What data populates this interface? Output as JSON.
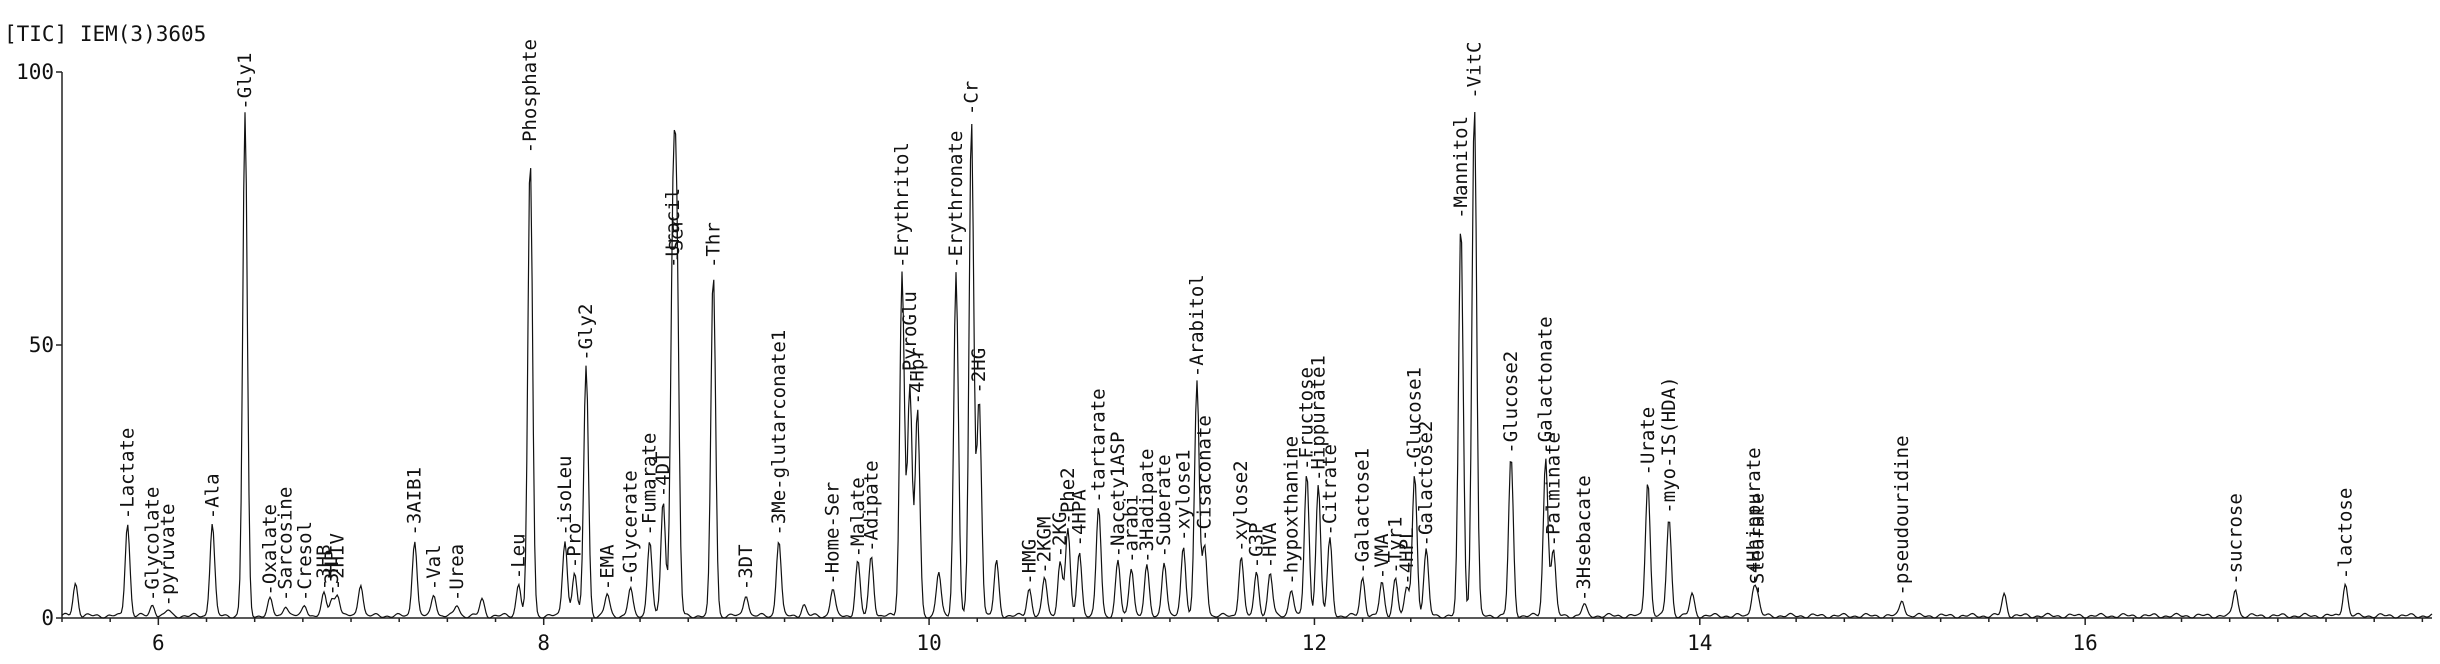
{
  "chart_data": {
    "type": "line",
    "title": "[TIC] IEM(3)3605",
    "xlabel": "",
    "ylabel": "",
    "xlim": [
      5.5,
      17.8
    ],
    "ylim": [
      0,
      100
    ],
    "x_ticks": [
      6,
      8,
      10,
      12,
      14,
      16
    ],
    "y_ticks": [
      0,
      50,
      100
    ],
    "grid": false,
    "series": [
      {
        "values": [],
        "peaks": [
          {
            "x": 5.57,
            "y": 6,
            "label": ""
          },
          {
            "x": 5.84,
            "y": 17,
            "label": "Lactate"
          },
          {
            "x": 5.97,
            "y": 2,
            "label": "Glycolate"
          },
          {
            "x": 6.05,
            "y": 1,
            "label": "pyruvate"
          },
          {
            "x": 6.28,
            "y": 17,
            "label": "Ala"
          },
          {
            "x": 6.45,
            "y": 92,
            "label": "Gly1"
          },
          {
            "x": 6.58,
            "y": 3,
            "label": "Oxalate"
          },
          {
            "x": 6.66,
            "y": 2,
            "label": "Sarcosine"
          },
          {
            "x": 6.76,
            "y": 2,
            "label": "Cresol"
          },
          {
            "x": 6.86,
            "y": 4,
            "label": "3HB"
          },
          {
            "x": 6.9,
            "y": 3,
            "label": "3HP"
          },
          {
            "x": 6.93,
            "y": 4,
            "label": "2HIV"
          },
          {
            "x": 7.05,
            "y": 6,
            "label": ""
          },
          {
            "x": 7.33,
            "y": 14,
            "label": "3AIB1"
          },
          {
            "x": 7.43,
            "y": 4,
            "label": "Val"
          },
          {
            "x": 7.55,
            "y": 2,
            "label": "Urea"
          },
          {
            "x": 7.68,
            "y": 3,
            "label": ""
          },
          {
            "x": 7.87,
            "y": 6,
            "label": "Leu"
          },
          {
            "x": 7.93,
            "y": 84,
            "label": "Phosphate"
          },
          {
            "x": 8.11,
            "y": 14,
            "label": "isoLeu"
          },
          {
            "x": 8.16,
            "y": 8,
            "label": "Pro"
          },
          {
            "x": 8.22,
            "y": 46,
            "label": "Gly2"
          },
          {
            "x": 8.33,
            "y": 4,
            "label": "EMA"
          },
          {
            "x": 8.45,
            "y": 5,
            "label": "Glycerate"
          },
          {
            "x": 8.55,
            "y": 14,
            "label": "Fumarate"
          },
          {
            "x": 8.62,
            "y": 21,
            "label": "4DT"
          },
          {
            "x": 8.67,
            "y": 63,
            "label": "Uracil"
          },
          {
            "x": 8.69,
            "y": 64,
            "label": "Ser"
          },
          {
            "x": 8.88,
            "y": 63,
            "label": "Thr"
          },
          {
            "x": 9.05,
            "y": 4,
            "label": "3DT"
          },
          {
            "x": 9.22,
            "y": 14,
            "label": "3Me-glutarconate1"
          },
          {
            "x": 9.35,
            "y": 2,
            "label": ""
          },
          {
            "x": 9.5,
            "y": 5,
            "label": "Home-Ser"
          },
          {
            "x": 9.63,
            "y": 10,
            "label": "Malate"
          },
          {
            "x": 9.7,
            "y": 11,
            "label": "Adipate"
          },
          {
            "x": 9.86,
            "y": 63,
            "label": "Erythritol"
          },
          {
            "x": 9.9,
            "y": 42,
            "label": "PyroGlu"
          },
          {
            "x": 9.94,
            "y": 38,
            "label": "4Hpr"
          },
          {
            "x": 10.05,
            "y": 8,
            "label": ""
          },
          {
            "x": 10.14,
            "y": 63,
            "label": "Erythronate"
          },
          {
            "x": 10.22,
            "y": 91,
            "label": "Cr"
          },
          {
            "x": 10.26,
            "y": 40,
            "label": "2HG"
          },
          {
            "x": 10.35,
            "y": 10,
            "label": ""
          },
          {
            "x": 10.52,
            "y": 5,
            "label": "HMG"
          },
          {
            "x": 10.6,
            "y": 7,
            "label": "2KGM"
          },
          {
            "x": 10.68,
            "y": 10,
            "label": "2KG"
          },
          {
            "x": 10.72,
            "y": 16,
            "label": "Phe2"
          },
          {
            "x": 10.78,
            "y": 12,
            "label": "4HPA"
          },
          {
            "x": 10.88,
            "y": 20,
            "label": "tartarate"
          },
          {
            "x": 10.98,
            "y": 10,
            "label": "Nacety1ASP"
          },
          {
            "x": 11.05,
            "y": 9,
            "label": "arabi"
          },
          {
            "x": 11.13,
            "y": 9,
            "label": "3Hadipate"
          },
          {
            "x": 11.22,
            "y": 10,
            "label": "Suberate"
          },
          {
            "x": 11.32,
            "y": 13,
            "label": "xylose1"
          },
          {
            "x": 11.39,
            "y": 43,
            "label": "Arabitol"
          },
          {
            "x": 11.43,
            "y": 13,
            "label": "Cisaconate"
          },
          {
            "x": 11.62,
            "y": 11,
            "label": "xylose2"
          },
          {
            "x": 11.7,
            "y": 8,
            "label": "G3P"
          },
          {
            "x": 11.77,
            "y": 8,
            "label": "HVA"
          },
          {
            "x": 11.88,
            "y": 5,
            "label": "hypoxthanine"
          },
          {
            "x": 11.96,
            "y": 26,
            "label": "Fructose"
          },
          {
            "x": 12.02,
            "y": 24,
            "label": "Hippurate1"
          },
          {
            "x": 12.08,
            "y": 14,
            "label": "Citrate"
          },
          {
            "x": 12.25,
            "y": 7,
            "label": "Galactose1"
          },
          {
            "x": 12.35,
            "y": 6,
            "label": "VMA"
          },
          {
            "x": 12.42,
            "y": 7,
            "label": "Tyr1"
          },
          {
            "x": 12.48,
            "y": 5,
            "label": "4HPL"
          },
          {
            "x": 12.52,
            "y": 26,
            "label": "Glucose1"
          },
          {
            "x": 12.58,
            "y": 12,
            "label": "Galactose2"
          },
          {
            "x": 12.76,
            "y": 72,
            "label": "Mannitol"
          },
          {
            "x": 12.83,
            "y": 94,
            "label": "VitC"
          },
          {
            "x": 13.02,
            "y": 29,
            "label": "Glucose2"
          },
          {
            "x": 13.2,
            "y": 29,
            "label": "Galactonate"
          },
          {
            "x": 13.24,
            "y": 12,
            "label": "Palminate"
          },
          {
            "x": 13.4,
            "y": 2,
            "label": "3Hsebacate"
          },
          {
            "x": 13.73,
            "y": 25,
            "label": "Urate"
          },
          {
            "x": 13.84,
            "y": 18,
            "label": "myo-IS(HDA)"
          },
          {
            "x": 13.96,
            "y": 4,
            "label": ""
          },
          {
            "x": 14.28,
            "y": 5,
            "label": "4Hhippurate"
          },
          {
            "x": 14.3,
            "y": 3,
            "label": "Stearate"
          },
          {
            "x": 15.05,
            "y": 3,
            "label": "pseudouridine"
          },
          {
            "x": 15.58,
            "y": 4,
            "label": ""
          },
          {
            "x": 16.78,
            "y": 5,
            "label": "sucrose"
          },
          {
            "x": 17.35,
            "y": 6,
            "label": "lactose"
          }
        ]
      }
    ]
  }
}
